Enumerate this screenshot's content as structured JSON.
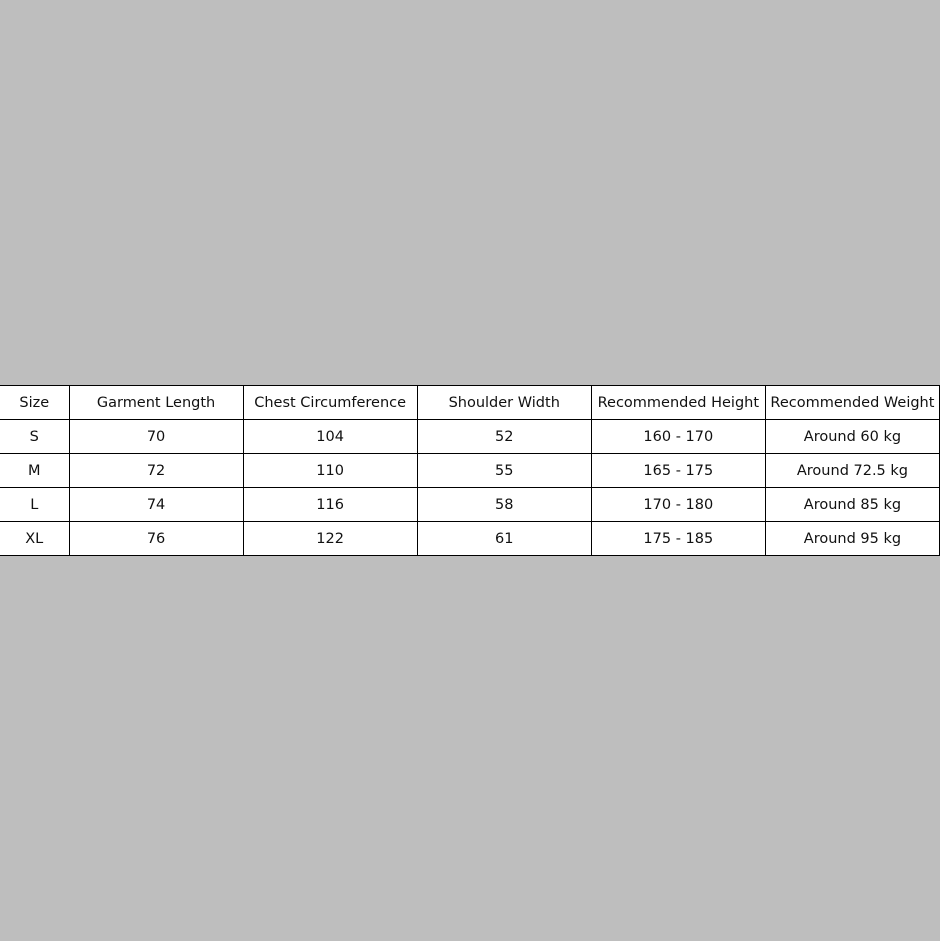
{
  "table": {
    "headers": [
      "Size",
      "Garment Length",
      "Chest Circumference",
      "Shoulder Width",
      "Recommended Height",
      "Recommended Weight"
    ],
    "rows": [
      [
        "S",
        "70",
        "104",
        "52",
        "160 - 170",
        "Around 60 kg"
      ],
      [
        "M",
        "72",
        "110",
        "55",
        "165 - 175",
        "Around 72.5 kg"
      ],
      [
        "L",
        "74",
        "116",
        "58",
        "170 - 180",
        "Around 85 kg"
      ],
      [
        "XL",
        "76",
        "122",
        "61",
        "175 - 185",
        "Around 95 kg"
      ]
    ]
  }
}
